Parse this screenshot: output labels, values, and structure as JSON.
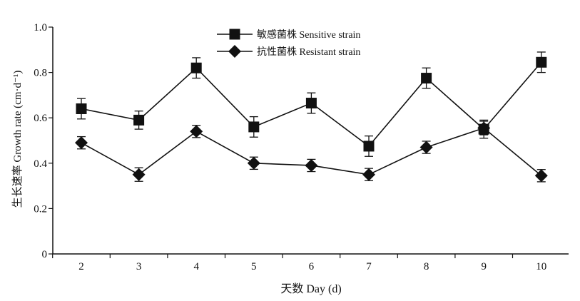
{
  "chart_data": {
    "type": "line",
    "xlabel": "天数 Day (d)",
    "ylabel": "生长速率 Growth rate (cm·d⁻¹)",
    "x": [
      2,
      3,
      4,
      5,
      6,
      7,
      8,
      9,
      10
    ],
    "x_tick_labels": [
      "2",
      "3",
      "4",
      "5",
      "6",
      "7",
      "8",
      "9",
      "10"
    ],
    "ylim": [
      0,
      1.0
    ],
    "y_ticks": [
      0,
      0.2,
      0.4,
      0.6,
      0.8,
      1.0
    ],
    "y_tick_labels": [
      "0",
      "0.2",
      "0.4",
      "0.6",
      "0.8",
      "1.0"
    ],
    "grid": false,
    "legend_position": "top-center",
    "series": [
      {
        "name": "敏感菌株 Sensitive strain",
        "marker": "square",
        "color": "#111111",
        "values": [
          0.64,
          0.59,
          0.82,
          0.56,
          0.665,
          0.475,
          0.775,
          0.55,
          0.845
        ],
        "errors": [
          0.045,
          0.04,
          0.045,
          0.045,
          0.045,
          0.045,
          0.045,
          0.04,
          0.045
        ]
      },
      {
        "name": "抗性菌株 Resistant strain",
        "marker": "diamond",
        "color": "#111111",
        "values": [
          0.49,
          0.35,
          0.54,
          0.4,
          0.39,
          0.35,
          0.47,
          0.555,
          0.345
        ],
        "errors": [
          0.027,
          0.03,
          0.027,
          0.027,
          0.027,
          0.027,
          0.027,
          0.03,
          0.027
        ]
      }
    ]
  }
}
